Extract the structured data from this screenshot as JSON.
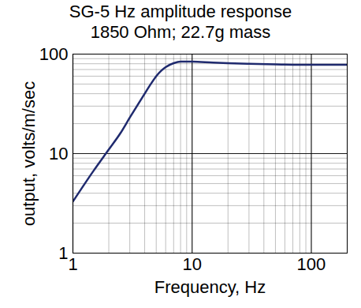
{
  "chart_data": {
    "type": "line",
    "title": "SG-5 Hz amplitude response",
    "subtitle": "1850 Ohm; 22.7g mass",
    "x_label": "Frequency, Hz",
    "y_label": "output, volts/m/sec",
    "x": [
      1,
      1.5,
      2,
      2.5,
      3,
      3.5,
      4,
      4.5,
      5,
      5.5,
      6,
      7,
      8,
      10,
      15,
      20,
      30,
      50,
      100,
      200
    ],
    "values": [
      3.3,
      6.8,
      11,
      16,
      23,
      31,
      40,
      50,
      60,
      68,
      74,
      81,
      84,
      84,
      82,
      81,
      80,
      79,
      78,
      78
    ],
    "color": "#1f2a6e",
    "xlim": [
      1,
      200
    ],
    "ylim": [
      1,
      100
    ],
    "xticks": [
      1,
      10,
      100
    ],
    "yticks": [
      1,
      10,
      100
    ],
    "log": true,
    "grid": true
  }
}
